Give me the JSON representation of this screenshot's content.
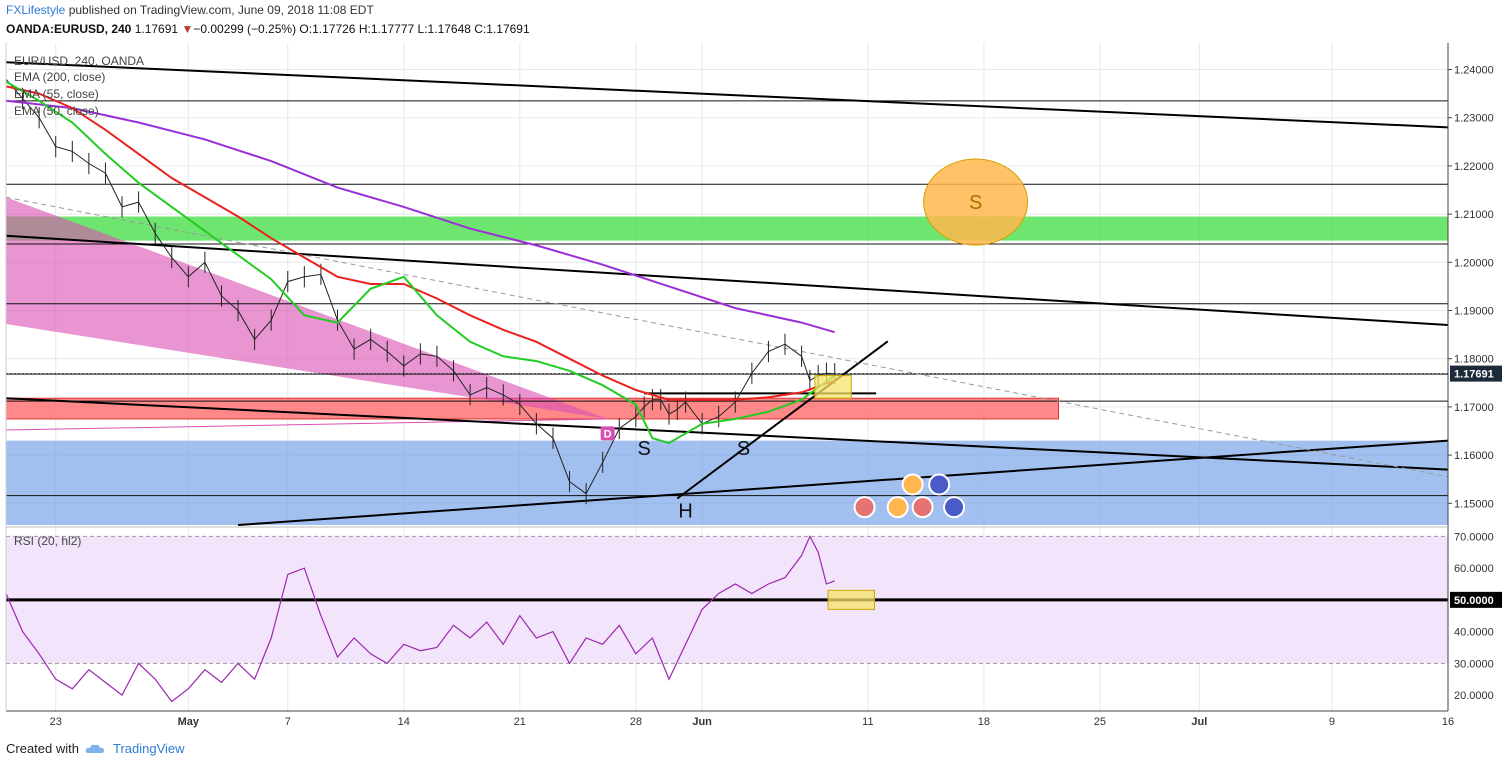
{
  "header": {
    "brand": "FXLifestyle",
    "published": "published on TradingView.com, June 09, 2018 11:08 EDT",
    "symbol": "OANDA:EURUSD, 240",
    "last": "1.17691",
    "change": "−0.00299 (−0.25%)",
    "open": "O:1.17726",
    "high": "H:1.17777",
    "low": "L:1.17648",
    "close": "C:1.17691"
  },
  "legend": {
    "title": "EUR/USD, 240, OANDA",
    "ema200": "EMA (200, close)",
    "ema55": "EMA (55, close)",
    "ema50": "EMA (50, close)"
  },
  "rsi_label": "RSI (20, hl2)",
  "footer": {
    "created_with": "Created with",
    "brand": "TradingView"
  },
  "colors": {
    "ema_green": "#22cc22",
    "ema_red": "#e8231f",
    "ema_purple": "#9b2fd6",
    "rsi_line": "#9c27b0",
    "green_zone": "#3ddc3d",
    "red_zone": "#ff6b6b",
    "blue_zone": "#6f9ee6",
    "pink_wedge": "#d94fb2",
    "orange_circle": "#ffb74d",
    "yellow_box": "#f7e36a",
    "price_tag": "#1b2b3a"
  },
  "chart_data": [
    {
      "type": "line",
      "title": "EUR/USD, 240, OANDA",
      "price_axis": {
        "range": [
          1.1455,
          1.2455
        ],
        "ticks": [
          "1.24000",
          "1.23000",
          "1.22000",
          "1.21000",
          "1.20000",
          "1.19000",
          "1.18000",
          "1.17000",
          "1.16000",
          "1.15000"
        ],
        "ticks_num": [
          1.24,
          1.23,
          1.22,
          1.21,
          1.2,
          1.19,
          1.18,
          1.17,
          1.16,
          1.15
        ],
        "last_price_label": "1.17691",
        "last_price": 1.17691
      },
      "time_axis": {
        "labels": [
          "23",
          "May",
          "7",
          "14",
          "21",
          "28",
          "Jun",
          "11",
          "18",
          "25",
          "Jul",
          "9",
          "16"
        ],
        "days": [
          23,
          31,
          37,
          44,
          51,
          58,
          62,
          72,
          79,
          86,
          92,
          100,
          107
        ],
        "range_days": [
          20,
          107
        ]
      },
      "series": [
        {
          "name": "EMA (50, close)",
          "color": "#22cc22",
          "x": [
            20,
            22,
            24,
            26,
            28,
            30,
            32,
            34,
            36,
            38,
            40,
            42,
            44,
            46,
            48,
            50,
            52,
            54,
            56,
            58,
            59,
            60,
            62,
            64,
            66,
            68,
            70
          ],
          "y": [
            1.2375,
            1.2335,
            1.229,
            1.2225,
            1.2165,
            1.2115,
            1.2065,
            1.2015,
            1.1965,
            1.189,
            1.1875,
            1.1945,
            1.197,
            1.189,
            1.1835,
            1.1805,
            1.1795,
            1.1775,
            1.1745,
            1.1705,
            1.1635,
            1.1625,
            1.1665,
            1.1675,
            1.169,
            1.1715,
            1.1765
          ]
        },
        {
          "name": "EMA (55, close)",
          "color": "#e8231f",
          "x": [
            20,
            22,
            24,
            26,
            28,
            30,
            32,
            34,
            36,
            38,
            40,
            42,
            44,
            46,
            48,
            50,
            52,
            54,
            56,
            58,
            60,
            62,
            64,
            66,
            68,
            70
          ],
          "y": [
            1.2365,
            1.235,
            1.232,
            1.2275,
            1.2225,
            1.2175,
            1.2135,
            1.2095,
            1.205,
            1.201,
            1.197,
            1.1955,
            1.1955,
            1.1925,
            1.189,
            1.186,
            1.1835,
            1.18,
            1.1765,
            1.1735,
            1.1715,
            1.1715,
            1.1715,
            1.172,
            1.173,
            1.1755
          ]
        },
        {
          "name": "EMA (200, close)",
          "color": "#9b2fd6",
          "x": [
            20,
            24,
            28,
            32,
            36,
            40,
            44,
            48,
            52,
            56,
            60,
            64,
            68,
            70
          ],
          "y": [
            1.2335,
            1.232,
            1.229,
            1.2255,
            1.221,
            1.2155,
            1.2115,
            1.207,
            1.2035,
            1.1995,
            1.195,
            1.1905,
            1.1875,
            1.1855
          ]
        },
        {
          "name": "price",
          "color": "#222222",
          "x": [
            20,
            21,
            22,
            23,
            24,
            25,
            26,
            27,
            28,
            29,
            30,
            31,
            32,
            33,
            34,
            35,
            36,
            37,
            38,
            39,
            40,
            41,
            42,
            43,
            44,
            45,
            46,
            47,
            48,
            49,
            50,
            51,
            52,
            53,
            54,
            55,
            56,
            57,
            58,
            58.5,
            59,
            59.5,
            60,
            60.5,
            61,
            62,
            63,
            64,
            65,
            66,
            67,
            68,
            68.5,
            69,
            69.5,
            70
          ],
          "y": [
            1.238,
            1.234,
            1.23,
            1.224,
            1.223,
            1.2205,
            1.2185,
            1.2115,
            1.2125,
            1.206,
            1.201,
            1.197,
            1.2,
            1.193,
            1.19,
            1.184,
            1.188,
            1.196,
            1.197,
            1.1975,
            1.188,
            1.182,
            1.184,
            1.1815,
            1.1785,
            1.181,
            1.1805,
            1.1775,
            1.1725,
            1.174,
            1.1725,
            1.1705,
            1.1665,
            1.1635,
            1.1545,
            1.152,
            1.1585,
            1.1655,
            1.168,
            1.17,
            1.1715,
            1.1715,
            1.1685,
            1.1695,
            1.171,
            1.1665,
            1.168,
            1.171,
            1.177,
            1.1815,
            1.183,
            1.1805,
            1.1755,
            1.1765,
            1.177,
            1.1769
          ]
        }
      ],
      "horizontal_lines": [
        1.2335,
        1.2162,
        1.2038,
        1.1914,
        1.1768,
        1.1712,
        1.1516
      ],
      "zones": {
        "green": [
          1.2045,
          1.2095
        ],
        "red": [
          1.1675,
          1.1718
        ],
        "blue": [
          1.1455,
          1.163
        ]
      },
      "annotations": [
        {
          "text": "S",
          "day": 58.5,
          "price": 1.1615
        },
        {
          "text": "H",
          "day": 61,
          "price": 1.1485
        },
        {
          "text": "S",
          "day": 64.5,
          "price": 1.1615
        },
        {
          "text": "S",
          "day": 78.5,
          "price": 1.2125
        },
        {
          "text": "D",
          "day": 56.3,
          "price": 1.1645
        }
      ]
    },
    {
      "type": "line",
      "title": "RSI (20, hl2)",
      "range": [
        15,
        72
      ],
      "ticks": [
        "70.0000",
        "60.0000",
        "50.0000",
        "40.0000",
        "30.0000",
        "20.0000"
      ],
      "ticks_num": [
        70,
        60,
        50,
        40,
        30,
        20
      ],
      "level_line": 50,
      "bands": [
        30,
        70
      ],
      "series": [
        {
          "name": "RSI",
          "color": "#9c27b0",
          "x": [
            20,
            21,
            22,
            23,
            24,
            25,
            26,
            27,
            28,
            29,
            30,
            31,
            32,
            33,
            34,
            35,
            36,
            37,
            38,
            39,
            40,
            41,
            42,
            43,
            44,
            45,
            46,
            47,
            48,
            49,
            50,
            51,
            52,
            53,
            54,
            55,
            56,
            57,
            58,
            59,
            60,
            61,
            62,
            63,
            64,
            65,
            66,
            67,
            68,
            68.5,
            69,
            69.5,
            70
          ],
          "y": [
            52,
            40,
            33,
            25,
            22,
            28,
            24,
            20,
            30,
            25,
            18,
            22,
            28,
            24,
            30,
            25,
            38,
            58,
            60,
            45,
            32,
            38,
            33,
            30,
            36,
            34,
            35,
            42,
            38,
            43,
            36,
            45,
            38,
            40,
            30,
            38,
            36,
            42,
            33,
            38,
            25,
            36,
            47,
            52,
            55,
            52,
            55,
            57,
            64,
            70,
            65,
            55,
            56
          ]
        }
      ]
    }
  ]
}
